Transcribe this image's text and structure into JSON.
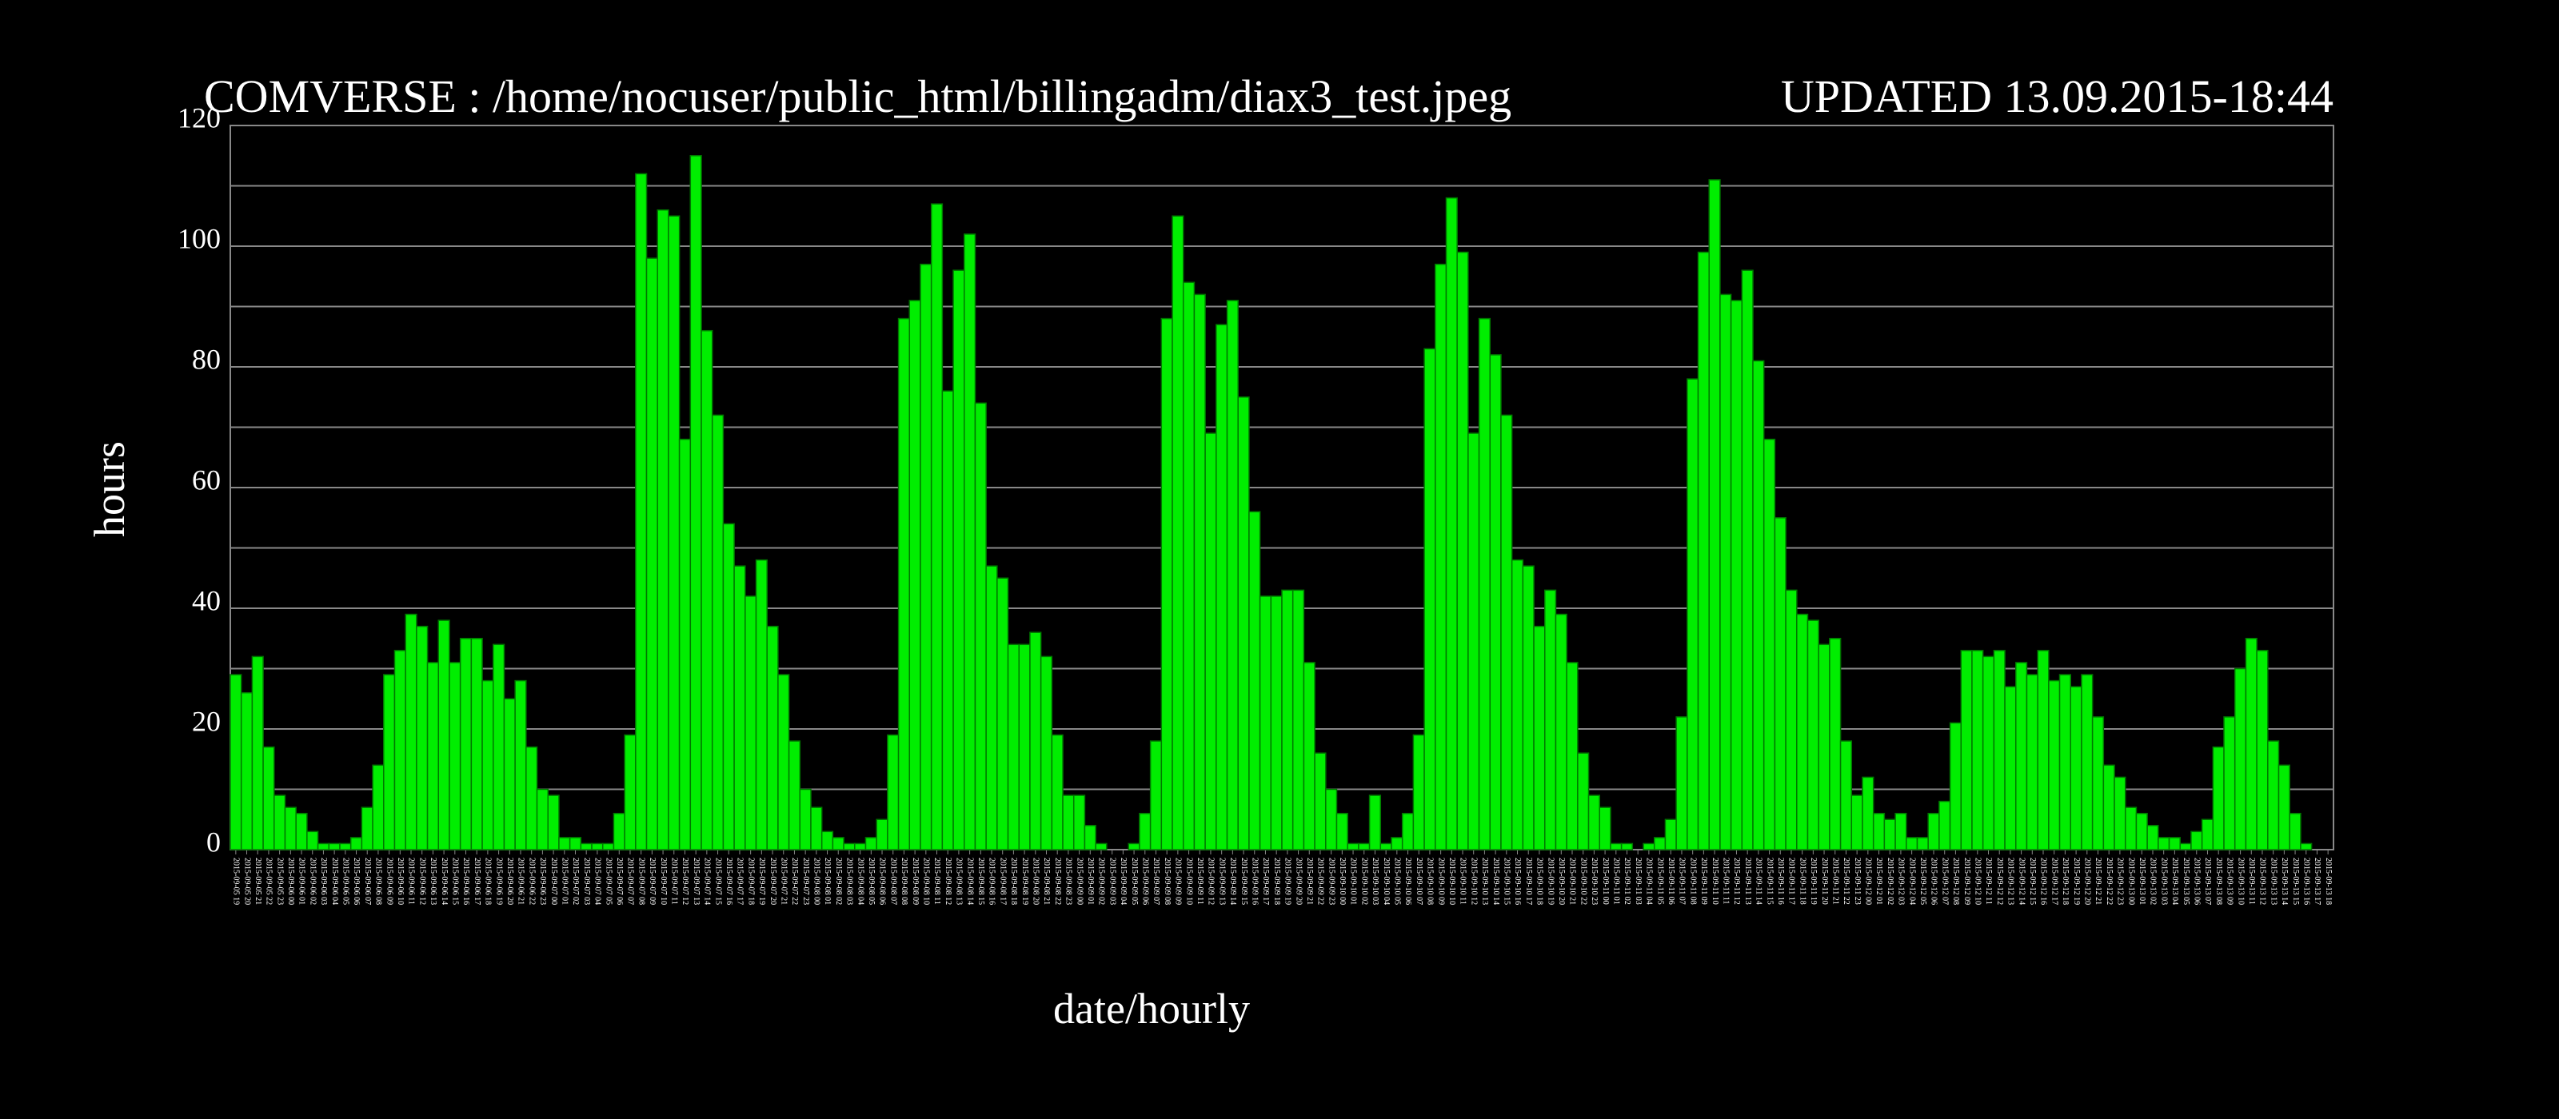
{
  "chart_data": {
    "type": "bar",
    "title": "COMVERSE : /home/nocuser/public_html/billingadm/diax3_test.jpeg",
    "subtitle": "UPDATED 13.09.2015-18:44",
    "ylabel": "hours",
    "xlabel": "date/hourly",
    "color": "#00ee00",
    "ylim": [
      0,
      120
    ],
    "yticks": [
      0,
      20,
      40,
      60,
      80,
      100,
      120
    ],
    "minor_yticks": [
      10,
      30,
      50,
      70,
      90,
      110
    ],
    "grid": true,
    "categories": [
      "2015-09-05 19",
      "2015-09-05 20",
      "2015-09-05 21",
      "2015-09-05 22",
      "2015-09-05 23",
      "2015-09-06 00",
      "2015-09-06 01",
      "2015-09-06 02",
      "2015-09-06 03",
      "2015-09-06 04",
      "2015-09-06 05",
      "2015-09-06 06",
      "2015-09-06 07",
      "2015-09-06 08",
      "2015-09-06 09",
      "2015-09-06 10",
      "2015-09-06 11",
      "2015-09-06 12",
      "2015-09-06 13",
      "2015-09-06 14",
      "2015-09-06 15",
      "2015-09-06 16",
      "2015-09-06 17",
      "2015-09-06 18",
      "2015-09-06 19",
      "2015-09-06 20",
      "2015-09-06 21",
      "2015-09-06 22",
      "2015-09-06 23",
      "2015-09-07 00",
      "2015-09-07 01",
      "2015-09-07 02",
      "2015-09-07 03",
      "2015-09-07 04",
      "2015-09-07 05",
      "2015-09-07 06",
      "2015-09-07 07",
      "2015-09-07 08",
      "2015-09-07 09",
      "2015-09-07 10",
      "2015-09-07 11",
      "2015-09-07 12",
      "2015-09-07 13",
      "2015-09-07 14",
      "2015-09-07 15",
      "2015-09-07 16",
      "2015-09-07 17",
      "2015-09-07 18",
      "2015-09-07 19",
      "2015-09-07 20",
      "2015-09-07 21",
      "2015-09-07 22",
      "2015-09-07 23",
      "2015-09-08 00",
      "2015-09-08 01",
      "2015-09-08 02",
      "2015-09-08 03",
      "2015-09-08 04",
      "2015-09-08 05",
      "2015-09-08 06",
      "2015-09-08 07",
      "2015-09-08 08",
      "2015-09-08 09",
      "2015-09-08 10",
      "2015-09-08 11",
      "2015-09-08 12",
      "2015-09-08 13",
      "2015-09-08 14",
      "2015-09-08 15",
      "2015-09-08 16",
      "2015-09-08 17",
      "2015-09-08 18",
      "2015-09-08 19",
      "2015-09-08 20",
      "2015-09-08 21",
      "2015-09-08 22",
      "2015-09-08 23",
      "2015-09-09 00",
      "2015-09-09 01",
      "2015-09-09 02",
      "2015-09-09 03",
      "2015-09-09 04",
      "2015-09-09 05",
      "2015-09-09 06",
      "2015-09-09 07",
      "2015-09-09 08",
      "2015-09-09 09",
      "2015-09-09 10",
      "2015-09-09 11",
      "2015-09-09 12",
      "2015-09-09 13",
      "2015-09-09 14",
      "2015-09-09 15",
      "2015-09-09 16",
      "2015-09-09 17",
      "2015-09-09 18",
      "2015-09-09 19",
      "2015-09-09 20",
      "2015-09-09 21",
      "2015-09-09 22",
      "2015-09-09 23",
      "2015-09-10 00",
      "2015-09-10 01",
      "2015-09-10 02",
      "2015-09-10 03",
      "2015-09-10 04",
      "2015-09-10 05",
      "2015-09-10 06",
      "2015-09-10 07",
      "2015-09-10 08",
      "2015-09-10 09",
      "2015-09-10 10",
      "2015-09-10 11",
      "2015-09-10 12",
      "2015-09-10 13",
      "2015-09-10 14",
      "2015-09-10 15",
      "2015-09-10 16",
      "2015-09-10 17",
      "2015-09-10 18",
      "2015-09-10 19",
      "2015-09-10 20",
      "2015-09-10 21",
      "2015-09-10 22",
      "2015-09-10 23",
      "2015-09-11 00",
      "2015-09-11 01",
      "2015-09-11 02",
      "2015-09-11 03",
      "2015-09-11 04",
      "2015-09-11 05",
      "2015-09-11 06",
      "2015-09-11 07",
      "2015-09-11 08",
      "2015-09-11 09",
      "2015-09-11 10",
      "2015-09-11 11",
      "2015-09-11 12",
      "2015-09-11 13",
      "2015-09-11 14",
      "2015-09-11 15",
      "2015-09-11 16",
      "2015-09-11 17",
      "2015-09-11 18",
      "2015-09-11 19",
      "2015-09-11 20",
      "2015-09-11 21",
      "2015-09-11 22",
      "2015-09-11 23",
      "2015-09-12 00",
      "2015-09-12 01",
      "2015-09-12 02",
      "2015-09-12 03",
      "2015-09-12 04",
      "2015-09-12 05",
      "2015-09-12 06",
      "2015-09-12 07",
      "2015-09-12 08",
      "2015-09-12 09",
      "2015-09-12 10",
      "2015-09-12 11",
      "2015-09-12 12",
      "2015-09-12 13",
      "2015-09-12 14",
      "2015-09-12 15",
      "2015-09-12 16",
      "2015-09-12 17",
      "2015-09-12 18",
      "2015-09-12 19",
      "2015-09-12 20",
      "2015-09-12 21",
      "2015-09-12 22",
      "2015-09-12 23",
      "2015-09-13 00",
      "2015-09-13 01",
      "2015-09-13 02",
      "2015-09-13 03",
      "2015-09-13 04",
      "2015-09-13 05",
      "2015-09-13 06",
      "2015-09-13 07",
      "2015-09-13 08",
      "2015-09-13 09",
      "2015-09-13 10",
      "2015-09-13 11",
      "2015-09-13 12",
      "2015-09-13 13",
      "2015-09-13 14",
      "2015-09-13 15",
      "2015-09-13 16",
      "2015-09-13 17",
      "2015-09-13 18"
    ],
    "values": [
      29,
      26,
      32,
      17,
      9,
      7,
      6,
      3,
      1,
      1,
      1,
      2,
      7,
      14,
      29,
      33,
      39,
      37,
      31,
      38,
      31,
      35,
      35,
      28,
      34,
      25,
      28,
      17,
      10,
      9,
      2,
      2,
      1,
      1,
      1,
      6,
      19,
      112,
      98,
      106,
      105,
      68,
      115,
      86,
      72,
      54,
      47,
      42,
      48,
      37,
      29,
      18,
      10,
      7,
      3,
      2,
      1,
      1,
      2,
      5,
      19,
      88,
      91,
      97,
      107,
      76,
      96,
      102,
      74,
      47,
      45,
      34,
      34,
      36,
      32,
      19,
      9,
      9,
      4,
      1,
      0,
      0,
      1,
      6,
      18,
      88,
      105,
      94,
      92,
      69,
      87,
      91,
      75,
      56,
      42,
      42,
      43,
      43,
      31,
      16,
      10,
      6,
      1,
      1,
      9,
      1,
      2,
      6,
      19,
      83,
      97,
      108,
      99,
      69,
      88,
      82,
      72,
      48,
      47,
      37,
      43,
      39,
      31,
      16,
      9,
      7,
      1,
      1,
      0,
      1,
      2,
      5,
      22,
      78,
      99,
      111,
      92,
      91,
      96,
      81,
      68,
      55,
      43,
      39,
      38,
      34,
      35,
      18,
      9,
      12,
      6,
      5,
      6,
      2,
      2,
      6,
      8,
      21,
      33,
      33,
      32,
      33,
      27,
      31,
      29,
      33,
      28,
      29,
      27,
      29,
      22,
      14,
      12,
      7,
      6,
      4,
      2,
      2,
      1,
      3,
      5,
      17,
      22,
      30,
      35,
      33,
      18,
      14,
      6,
      1,
      0,
      0
    ]
  }
}
